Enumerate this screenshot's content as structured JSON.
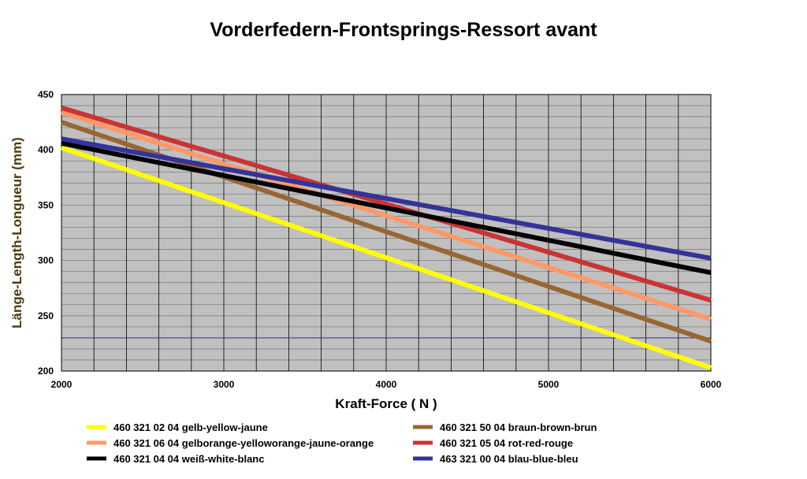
{
  "chart_data": {
    "type": "line",
    "title": "Vorderfedern-Frontsprings-Ressort avant",
    "xlabel": "Kraft-Force ( N )",
    "ylabel": "Länge-Length-Longueur (mm)",
    "xlim": [
      2000,
      6000
    ],
    "ylim": [
      200,
      450
    ],
    "x_ticks": [
      "2000",
      "3000",
      "4000",
      "5000",
      "6000"
    ],
    "y_ticks": [
      "200",
      "250",
      "300",
      "350",
      "400",
      "450"
    ],
    "grid": true,
    "x_minor_step": 200,
    "y_minor_step": 10,
    "reference_line": {
      "y": 230
    },
    "legend_position": "bottom",
    "series": [
      {
        "name": "460 321 02 04 gelb-yellow-jaune",
        "color": "#ffff00",
        "x": [
          2000,
          6000
        ],
        "y": [
          402,
          203
        ]
      },
      {
        "name": "460 321 06 04 gelborange-yelloworange-jaune-orange",
        "color": "#ff9966",
        "x": [
          2000,
          6000
        ],
        "y": [
          434,
          247
        ]
      },
      {
        "name": "460 321 04 04 weiß-white-blanc",
        "color": "#000000",
        "x": [
          2000,
          6000
        ],
        "y": [
          406,
          289
        ]
      },
      {
        "name": "460 321 50 04 braun-brown-brun",
        "color": "#996633",
        "x": [
          2000,
          6000
        ],
        "y": [
          425,
          227
        ]
      },
      {
        "name": "460 321 05 04 rot-red-rouge",
        "color": "#cc3333",
        "x": [
          2000,
          6000
        ],
        "y": [
          438,
          264
        ]
      },
      {
        "name": "463 321 00 04 blau-blue-bleu",
        "color": "#333399",
        "x": [
          2000,
          6000
        ],
        "y": [
          410,
          302
        ]
      }
    ],
    "draw_order": [
      1,
      0,
      3,
      4,
      2,
      5
    ],
    "colors": {
      "plot_background": "#c0c0c0",
      "grid_major": "#000000",
      "grid_minor": "#808080",
      "reference_line": "#333399"
    }
  }
}
